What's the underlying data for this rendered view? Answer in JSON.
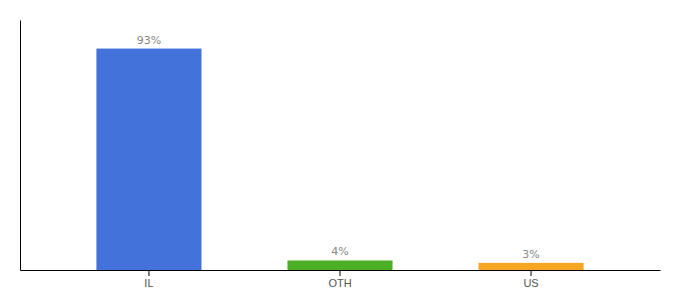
{
  "chart_data": {
    "type": "bar",
    "categories": [
      "IL",
      "OTH",
      "US"
    ],
    "values": [
      93,
      4,
      3
    ],
    "value_labels": [
      "93%",
      "4%",
      "3%"
    ],
    "colors": [
      "#4472db",
      "#4caf27",
      "#f5a623"
    ],
    "ylim": [
      0,
      105
    ],
    "data_labels": true,
    "tick_labels": "x",
    "grid": false
  }
}
